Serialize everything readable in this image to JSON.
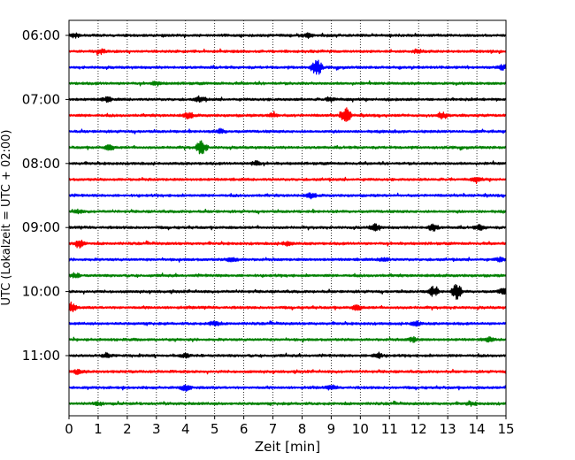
{
  "chart_data": {
    "type": "line",
    "title": "",
    "xlabel": "Zeit  [min]",
    "ylabel": "UTC (Lokalzeit = UTC + 02:00)",
    "xlim": [
      0,
      15
    ],
    "x_ticks": [
      "0",
      "1",
      "2",
      "3",
      "4",
      "5",
      "6",
      "7",
      "8",
      "9",
      "10",
      "11",
      "12",
      "13",
      "14",
      "15"
    ],
    "y_tick_labels": [
      "06:00",
      "07:00",
      "08:00",
      "09:00",
      "10:00",
      "11:00"
    ],
    "grid": "vertical dotted at each minute",
    "legend": "none",
    "trace_colors": [
      "#000000",
      "#ff0000",
      "#0000ff",
      "#008000"
    ],
    "traces": [
      {
        "start": "06:00",
        "color": "#000000",
        "events": [
          [
            0.2,
            1.0
          ],
          [
            8.2,
            1.2
          ]
        ]
      },
      {
        "start": "06:15",
        "color": "#ff0000",
        "events": [
          [
            1.1,
            1.0
          ],
          [
            12.0,
            1.0
          ]
        ]
      },
      {
        "start": "06:30",
        "color": "#0000ff",
        "events": [
          [
            8.5,
            4.5
          ],
          [
            14.9,
            1.2
          ]
        ]
      },
      {
        "start": "06:45",
        "color": "#008000",
        "events": [
          [
            3.0,
            0.8
          ]
        ]
      },
      {
        "start": "07:00",
        "color": "#000000",
        "events": [
          [
            1.3,
            1.2
          ],
          [
            4.5,
            1.5
          ],
          [
            9.0,
            1.0
          ]
        ]
      },
      {
        "start": "07:15",
        "color": "#ff0000",
        "events": [
          [
            4.1,
            1.5
          ],
          [
            7.0,
            1.2
          ],
          [
            9.5,
            4.0
          ],
          [
            12.8,
            1.5
          ]
        ]
      },
      {
        "start": "07:30",
        "color": "#0000ff",
        "events": [
          [
            5.2,
            1.0
          ]
        ]
      },
      {
        "start": "07:45",
        "color": "#008000",
        "events": [
          [
            1.4,
            1.2
          ],
          [
            4.55,
            4.0
          ]
        ]
      },
      {
        "start": "08:00",
        "color": "#000000",
        "events": [
          [
            6.4,
            1.2
          ]
        ]
      },
      {
        "start": "08:15",
        "color": "#ff0000",
        "events": [
          [
            14.0,
            1.0
          ]
        ]
      },
      {
        "start": "08:30",
        "color": "#0000ff",
        "events": [
          [
            8.3,
            1.2
          ]
        ]
      },
      {
        "start": "08:45",
        "color": "#008000",
        "events": [
          [
            0.3,
            0.8
          ]
        ]
      },
      {
        "start": "09:00",
        "color": "#000000",
        "events": [
          [
            10.5,
            1.8
          ],
          [
            12.5,
            1.8
          ],
          [
            14.1,
            1.2
          ]
        ]
      },
      {
        "start": "09:15",
        "color": "#ff0000",
        "events": [
          [
            0.35,
            2.0
          ],
          [
            7.5,
            1.0
          ]
        ]
      },
      {
        "start": "09:30",
        "color": "#0000ff",
        "events": [
          [
            5.6,
            1.2
          ],
          [
            10.8,
            1.0
          ],
          [
            14.8,
            1.0
          ]
        ]
      },
      {
        "start": "09:45",
        "color": "#008000",
        "events": [
          [
            0.2,
            1.0
          ]
        ]
      },
      {
        "start": "10:00",
        "color": "#000000",
        "events": [
          [
            12.5,
            2.5
          ],
          [
            13.3,
            4.0
          ],
          [
            14.9,
            1.5
          ]
        ]
      },
      {
        "start": "10:15",
        "color": "#ff0000",
        "events": [
          [
            0.05,
            3.0
          ],
          [
            9.9,
            1.2
          ]
        ]
      },
      {
        "start": "10:30",
        "color": "#0000ff",
        "events": [
          [
            5.0,
            1.2
          ],
          [
            11.9,
            1.2
          ]
        ]
      },
      {
        "start": "10:45",
        "color": "#008000",
        "events": [
          [
            11.8,
            1.2
          ],
          [
            14.4,
            1.0
          ]
        ]
      },
      {
        "start": "11:00",
        "color": "#000000",
        "events": [
          [
            1.3,
            1.2
          ],
          [
            4.0,
            1.0
          ],
          [
            10.6,
            1.4
          ]
        ]
      },
      {
        "start": "11:15",
        "color": "#ff0000",
        "events": [
          [
            0.3,
            1.0
          ]
        ]
      },
      {
        "start": "11:30",
        "color": "#0000ff",
        "events": [
          [
            4.0,
            1.6
          ],
          [
            9.0,
            1.0
          ]
        ]
      },
      {
        "start": "11:45",
        "color": "#008000",
        "events": [
          [
            1.0,
            0.8
          ],
          [
            13.8,
            0.8
          ]
        ]
      }
    ]
  }
}
